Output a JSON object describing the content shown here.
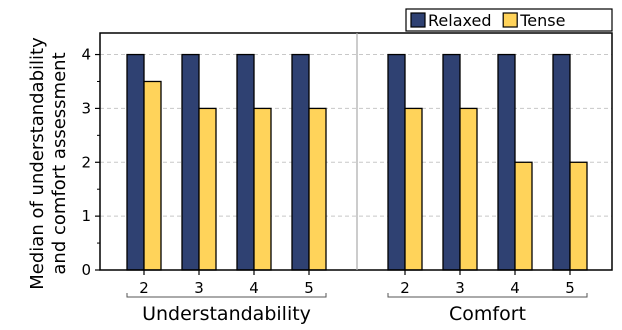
{
  "chart_data": {
    "type": "bar",
    "ylabel": [
      "Median of understandability",
      "and comfort assessment"
    ],
    "ylim": [
      0,
      4.4
    ],
    "yticks": [
      "0",
      "1",
      "2",
      "3",
      "4"
    ],
    "grid": true,
    "legend_position": "top-right",
    "groups": [
      {
        "label": "Understandability",
        "categories": [
          "2",
          "3",
          "4",
          "5"
        ]
      },
      {
        "label": "Comfort",
        "categories": [
          "2",
          "3",
          "4",
          "5"
        ]
      }
    ],
    "series": [
      {
        "name": "Relaxed",
        "color": "#2f4172",
        "values": [
          4,
          4,
          4,
          4,
          4,
          4,
          4,
          4
        ]
      },
      {
        "name": "Tense",
        "color": "#ffd35a",
        "values": [
          3.5,
          3,
          3,
          3,
          3,
          3,
          2,
          2
        ]
      }
    ]
  }
}
